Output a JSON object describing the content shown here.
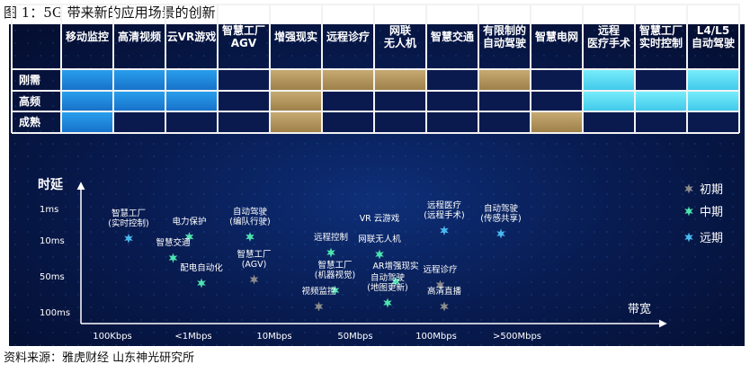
{
  "title": "图 1：5G 带来新的应用场景的创新",
  "source": "资料来源：雅虎财经  山东神光研究所",
  "matrix": {
    "columns": [
      "移动监控",
      "高清视频",
      "云VR游戏",
      "智慧工厂\nAGV",
      "增强现实",
      "远程诊疗",
      "网联\n无人机",
      "智慧交通",
      "有限制的\n自动驾驶",
      "智慧电网",
      "远程\n医疗手术",
      "智慧工厂\n实时控制",
      "L4/L5\n自动驾驶"
    ],
    "rows": [
      {
        "label": "刚需",
        "cells": [
          "blue",
          "blue",
          "blue",
          "navy",
          "gold",
          "gold",
          "gold",
          "navy",
          "gold",
          "navy",
          "cyan",
          "navy",
          "cyan"
        ]
      },
      {
        "label": "高频",
        "cells": [
          "blue",
          "blue",
          "blue",
          "navy",
          "gold",
          "navy",
          "navy",
          "navy",
          "navy",
          "navy",
          "cyan",
          "cyan",
          "cyan"
        ]
      },
      {
        "label": "成熟",
        "cells": [
          "blue",
          "navy",
          "navy",
          "navy",
          "gold",
          "navy",
          "navy",
          "navy",
          "navy",
          "gold",
          "navy",
          "navy",
          "navy"
        ]
      }
    ],
    "colors": {
      "blue": "#1e8fe0",
      "gold": "#b89a62",
      "cyan": "#5fe1f7",
      "navy": "#0a1a4f"
    }
  },
  "chart_data": {
    "type": "scatter",
    "ylabel": "时延",
    "xlabel": "带宽",
    "x_ticks": [
      "100Kbps",
      "<1Mbps",
      "10Mbps",
      "50Mbps",
      "100Mbps",
      ">500Mbps"
    ],
    "y_ticks": [
      "1ms",
      "10ms",
      "50ms",
      "100ms"
    ],
    "legend": {
      "placement": "right",
      "entries": [
        {
          "name": "初期",
          "color": "#8c8c8c"
        },
        {
          "name": "中期",
          "color": "#4de3b0"
        },
        {
          "name": "远期",
          "color": "#4ab8f0"
        }
      ]
    },
    "points": [
      {
        "label": "智慧工厂\n(实时控制)",
        "x": 0.2,
        "y": 0.95,
        "stage": "远期"
      },
      {
        "label": "电力保护",
        "x": 0.95,
        "y": 0.9,
        "stage": "中期"
      },
      {
        "label": "自动驾驶\n(编队行驶)",
        "x": 1.7,
        "y": 0.9,
        "stage": "中期"
      },
      {
        "label": "智慧交通",
        "x": 0.75,
        "y": 1.5,
        "stage": "中期"
      },
      {
        "label": "配电自动化",
        "x": 1.1,
        "y": 2.2,
        "stage": "中期"
      },
      {
        "label": "智慧工厂\n(AGV)",
        "x": 1.75,
        "y": 2.1,
        "stage": "初期"
      },
      {
        "label": "远程控制",
        "x": 2.7,
        "y": 1.35,
        "stage": "中期"
      },
      {
        "label": "智慧工厂\n(机器视觉)",
        "x": 2.75,
        "y": 2.4,
        "stage": "中期"
      },
      {
        "label": "视频监控",
        "x": 2.55,
        "y": 2.85,
        "stage": "初期"
      },
      {
        "label": "VR 云游戏",
        "x": 3.3,
        "y": 0.4,
        "stage": ""
      },
      {
        "label": "网联无人机",
        "x": 3.3,
        "y": 1.4,
        "stage": "中期"
      },
      {
        "label": "AR增强现实",
        "x": 3.5,
        "y": 2.15,
        "stage": "中期"
      },
      {
        "label": "自动驾驶\n(地图更新)",
        "x": 3.4,
        "y": 2.75,
        "stage": "中期"
      },
      {
        "label": "远程医疗\n(远程手术)",
        "x": 4.1,
        "y": 0.7,
        "stage": "远期"
      },
      {
        "label": "远程诊疗",
        "x": 4.05,
        "y": 2.25,
        "stage": "初期"
      },
      {
        "label": "高清直播",
        "x": 4.1,
        "y": 2.85,
        "stage": "初期"
      },
      {
        "label": "自动驾驶\n(传感共享)",
        "x": 4.8,
        "y": 0.8,
        "stage": "远期"
      }
    ]
  }
}
